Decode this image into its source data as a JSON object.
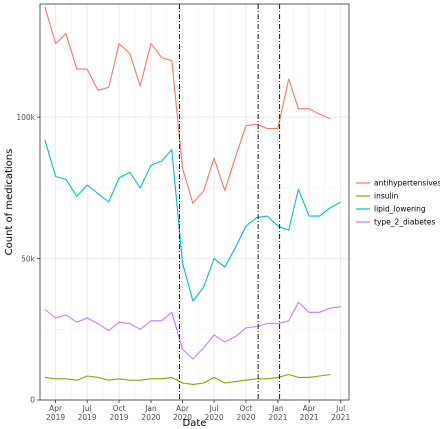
{
  "chart_data": {
    "type": "line",
    "xlabel": "Date",
    "ylabel": "Count of medications",
    "x": [
      "2019-03",
      "2019-04",
      "2019-05",
      "2019-06",
      "2019-07",
      "2019-08",
      "2019-09",
      "2019-10",
      "2019-11",
      "2019-12",
      "2020-01",
      "2020-02",
      "2020-03",
      "2020-04",
      "2020-05",
      "2020-06",
      "2020-07",
      "2020-08",
      "2020-09",
      "2020-10",
      "2020-11",
      "2020-12",
      "2021-01",
      "2021-02",
      "2021-03",
      "2021-04",
      "2021-05",
      "2021-06",
      "2021-07"
    ],
    "xlim": [
      "2019-02-15",
      "2021-07-25"
    ],
    "ylim": [
      0,
      140000
    ],
    "y_ticks": [
      0,
      50000,
      100000
    ],
    "y_tick_labels": [
      "0",
      "50k",
      "100k"
    ],
    "x_ticks": [
      {
        "date": "2019-04-01",
        "label": [
          "Apr",
          "2019"
        ]
      },
      {
        "date": "2019-07-01",
        "label": [
          "Jul",
          "2019"
        ]
      },
      {
        "date": "2019-10-01",
        "label": [
          "Oct",
          "2019"
        ]
      },
      {
        "date": "2020-01-01",
        "label": [
          "Jan",
          "2020"
        ]
      },
      {
        "date": "2020-04-01",
        "label": [
          "Apr",
          "2020"
        ]
      },
      {
        "date": "2020-07-01",
        "label": [
          "Jul",
          "2020"
        ]
      },
      {
        "date": "2020-10-01",
        "label": [
          "Oct",
          "2020"
        ]
      },
      {
        "date": "2021-01-01",
        "label": [
          "Jan",
          "2021"
        ]
      },
      {
        "date": "2021-04-01",
        "label": [
          "Apr",
          "2021"
        ]
      },
      {
        "date": "2021-07-01",
        "label": [
          "Jul",
          "2021"
        ]
      }
    ],
    "vlines": [
      "2020-03-23",
      "2020-11-05",
      "2021-01-06"
    ],
    "grid": true,
    "legend_position": "right",
    "series": [
      {
        "name": "antihypertensives",
        "color": "#F8766D",
        "values": [
          139000,
          126000,
          129500,
          117000,
          117000,
          109500,
          110500,
          126000,
          122500,
          111000,
          126000,
          121000,
          120000,
          82000,
          69500,
          74000,
          85500,
          74000,
          86000,
          97000,
          97500,
          96000,
          96000,
          113500,
          103000,
          103000,
          101000,
          99500,
          null
        ]
      },
      {
        "name": "insulin",
        "color": "#7CAE00",
        "values": [
          8000,
          7500,
          7500,
          7000,
          8500,
          8000,
          7000,
          7500,
          7000,
          7000,
          7500,
          7500,
          8000,
          6000,
          5500,
          6000,
          8000,
          6000,
          6500,
          7000,
          7500,
          7500,
          8000,
          9000,
          8000,
          8000,
          8500,
          9000,
          null
        ]
      },
      {
        "name": "lipid_lowering",
        "color": "#00BFC4",
        "values": [
          92000,
          79000,
          78000,
          72000,
          76000,
          73000,
          70000,
          78500,
          80500,
          75000,
          83000,
          84500,
          88500,
          48500,
          35000,
          40000,
          50000,
          47000,
          54000,
          61500,
          64500,
          65000,
          61500,
          60000,
          74500,
          65000,
          65000,
          68000,
          70000
        ]
      },
      {
        "name": "type_2_diabetes",
        "color": "#C77CFF",
        "values": [
          32000,
          29000,
          30000,
          27500,
          29000,
          27000,
          24500,
          27500,
          27000,
          25000,
          28000,
          28000,
          31000,
          18000,
          14500,
          18500,
          23000,
          20500,
          22500,
          25500,
          26000,
          27000,
          27000,
          28000,
          34500,
          31000,
          31000,
          32500,
          33000
        ]
      }
    ]
  }
}
